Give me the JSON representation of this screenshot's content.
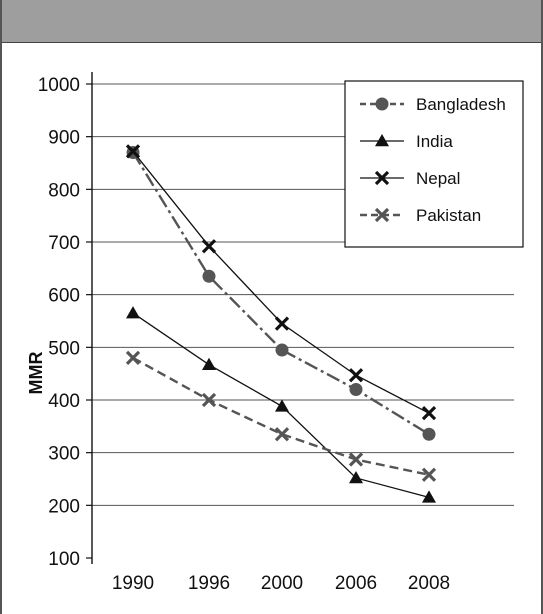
{
  "chart_data": {
    "type": "line",
    "title": "",
    "xlabel": "",
    "ylabel": "MMR",
    "categories": [
      "1990",
      "1996",
      "2000",
      "2006",
      "2008"
    ],
    "ylim": [
      100,
      1000
    ],
    "yticks": [
      100,
      200,
      300,
      400,
      500,
      600,
      700,
      800,
      900,
      1000
    ],
    "grid": "horizontal",
    "legend_position": "top-right",
    "series": [
      {
        "name": "Bangladesh",
        "values": [
          870,
          635,
          495,
          420,
          335
        ],
        "marker": "circle",
        "line_style": "dash-dot",
        "color": "#555555"
      },
      {
        "name": "India",
        "values": [
          565,
          467,
          388,
          252,
          215
        ],
        "marker": "triangle",
        "line_style": "solid",
        "color": "#111111"
      },
      {
        "name": "Nepal",
        "values": [
          872,
          692,
          545,
          447,
          375
        ],
        "marker": "x",
        "line_style": "solid",
        "color": "#111111"
      },
      {
        "name": "Pakistan",
        "values": [
          480,
          400,
          335,
          287,
          258
        ],
        "marker": "x",
        "line_style": "dashed",
        "color": "#555555"
      }
    ]
  },
  "colors": {
    "header_band": "#9e9e9e",
    "gridline": "#555555"
  }
}
